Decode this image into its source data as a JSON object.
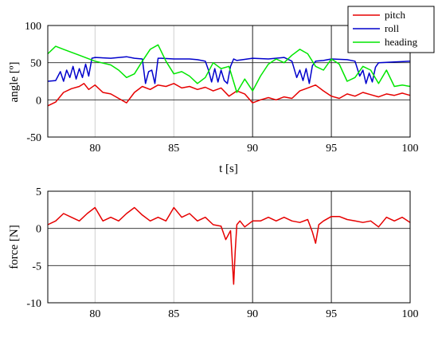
{
  "chart_data": [
    {
      "type": "line",
      "xlabel": "t [s]",
      "ylabel": "angle [º]",
      "xlim": [
        77,
        100
      ],
      "ylim": [
        -50,
        100
      ],
      "xticks": [
        "80",
        "85",
        "90",
        "95",
        "100"
      ],
      "yticks": [
        "100",
        "50",
        "0",
        "-50"
      ],
      "legend_position": "top-right",
      "colors": {
        "pitch": "#e60000",
        "roll": "#0000cc",
        "heading": "#00e600"
      },
      "series": [
        {
          "name": "pitch",
          "x": [
            77,
            77.5,
            78,
            78.5,
            79,
            79.3,
            79.6,
            80,
            80.5,
            81,
            81.5,
            82,
            82.5,
            83,
            83.5,
            84,
            84.5,
            85,
            85.5,
            86,
            86.5,
            87,
            87.5,
            88,
            88.5,
            89,
            89.5,
            90,
            90.5,
            91,
            91.5,
            92,
            92.5,
            93,
            93.5,
            94,
            94.5,
            95,
            95.5,
            96,
            96.5,
            97,
            97.5,
            98,
            98.5,
            99,
            99.5,
            100
          ],
          "values": [
            -8,
            -3,
            10,
            15,
            18,
            22,
            14,
            20,
            10,
            8,
            2,
            -4,
            10,
            18,
            14,
            20,
            18,
            22,
            16,
            18,
            14,
            17,
            12,
            16,
            5,
            12,
            8,
            -4,
            0,
            3,
            0,
            4,
            2,
            12,
            16,
            20,
            12,
            5,
            2,
            8,
            5,
            10,
            7,
            4,
            8,
            6,
            9,
            6
          ]
        },
        {
          "name": "roll",
          "x": [
            77,
            77.5,
            77.8,
            78,
            78.2,
            78.4,
            78.6,
            78.8,
            79,
            79.2,
            79.4,
            79.6,
            79.8,
            80,
            81,
            82,
            82.5,
            83,
            83.2,
            83.4,
            83.6,
            83.8,
            84,
            84.2,
            85,
            86,
            86.5,
            87,
            87.2,
            87.4,
            87.6,
            87.8,
            88,
            88.2,
            88.4,
            88.6,
            88.8,
            89,
            90,
            91,
            92,
            92.5,
            92.8,
            93,
            93.2,
            93.4,
            93.6,
            93.8,
            94,
            94.5,
            95,
            96,
            96.5,
            96.8,
            97,
            97.2,
            97.4,
            97.6,
            97.8,
            98,
            99,
            100
          ],
          "values": [
            25,
            26,
            38,
            25,
            40,
            30,
            45,
            28,
            42,
            30,
            48,
            32,
            56,
            57,
            56,
            58,
            56,
            55,
            22,
            38,
            40,
            22,
            56,
            56,
            55,
            55,
            54,
            52,
            40,
            24,
            42,
            24,
            40,
            26,
            22,
            45,
            55,
            53,
            56,
            55,
            57,
            52,
            30,
            40,
            26,
            42,
            22,
            46,
            52,
            53,
            55,
            54,
            52,
            32,
            40,
            22,
            36,
            24,
            44,
            50,
            51,
            52
          ]
        },
        {
          "name": "heading",
          "x": [
            77,
            77.5,
            78,
            79,
            80,
            81,
            81.5,
            82,
            82.5,
            83,
            83.5,
            84,
            84.5,
            85,
            85.5,
            86,
            86.5,
            87,
            87.5,
            88,
            88.5,
            89,
            89.5,
            90,
            90.5,
            91,
            91.5,
            92,
            92.5,
            93,
            93.5,
            94,
            94.5,
            95,
            95.5,
            96,
            96.5,
            97,
            97.5,
            98,
            98.5,
            99,
            99.5,
            100
          ],
          "values": [
            62,
            72,
            68,
            60,
            52,
            47,
            40,
            30,
            35,
            52,
            68,
            74,
            52,
            35,
            38,
            32,
            22,
            30,
            50,
            42,
            45,
            10,
            28,
            12,
            32,
            48,
            55,
            50,
            60,
            68,
            62,
            45,
            40,
            55,
            48,
            25,
            30,
            45,
            40,
            22,
            40,
            18,
            20,
            18
          ]
        }
      ]
    },
    {
      "type": "line",
      "xlabel": "",
      "ylabel": "force [N]",
      "xlim": [
        77,
        100
      ],
      "ylim": [
        -10,
        5
      ],
      "xticks": [
        "80",
        "85",
        "90",
        "95",
        "100"
      ],
      "yticks": [
        "5",
        "0",
        "-5",
        "-10"
      ],
      "colors": {
        "force": "#e60000"
      },
      "series": [
        {
          "name": "",
          "x": [
            77,
            77.5,
            78,
            78.5,
            79,
            79.5,
            80,
            80.5,
            81,
            81.5,
            82,
            82.5,
            83,
            83.5,
            84,
            84.5,
            85,
            85.5,
            86,
            86.5,
            87,
            87.5,
            88,
            88.3,
            88.6,
            88.8,
            88.9,
            89,
            89.2,
            89.5,
            90,
            90.5,
            91,
            91.5,
            92,
            92.5,
            93,
            93.5,
            93.8,
            94,
            94.2,
            94.5,
            95,
            95.5,
            96,
            96.5,
            97,
            97.5,
            98,
            98.5,
            99,
            99.5,
            100
          ],
          "values": [
            0.5,
            1,
            2,
            1.5,
            1,
            2,
            2.8,
            1,
            1.5,
            1,
            2,
            2.8,
            1.8,
            1,
            1.5,
            1,
            2.8,
            1.5,
            2,
            1,
            1.5,
            0.5,
            0.3,
            -1.5,
            -0.3,
            -7.5,
            -3,
            0.5,
            1,
            0.2,
            1,
            1,
            1.5,
            1,
            1.5,
            1,
            0.8,
            1.2,
            -0.5,
            -2,
            0.5,
            1,
            1.6,
            1.6,
            1.2,
            1,
            0.8,
            1,
            0.2,
            1.5,
            1,
            1.5,
            0.8
          ]
        }
      ]
    }
  ]
}
